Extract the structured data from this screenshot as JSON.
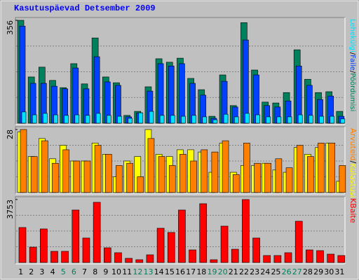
{
  "title": "Kasutuspäevad Detsember 2009",
  "legend_separator": "/",
  "categories": [
    "1",
    "2",
    "3",
    "4",
    "5",
    "6",
    "7",
    "8",
    "9",
    "10",
    "11",
    "12",
    "13",
    "14",
    "15",
    "16",
    "17",
    "18",
    "19",
    "20",
    "21",
    "22",
    "23",
    "24",
    "25",
    "26",
    "27",
    "28",
    "29",
    "30",
    "31"
  ],
  "category_colors": [
    "#000000",
    "#000000",
    "#000000",
    "#000000",
    "#00805C",
    "#00805C",
    "#000000",
    "#000000",
    "#000000",
    "#000000",
    "#000000",
    "#00805C",
    "#00805C",
    "#000000",
    "#000000",
    "#000000",
    "#000000",
    "#000000",
    "#00805C",
    "#00805C",
    "#000000",
    "#000000",
    "#000000",
    "#000000",
    "#000000",
    "#00805C",
    "#00805C",
    "#000000",
    "#000000",
    "#000000",
    "#000000"
  ],
  "chart_data": [
    {
      "type": "bar",
      "ylim": [
        0,
        356
      ],
      "yticks": [
        356
      ],
      "grid": true,
      "series": [
        {
          "name": "Pöördumisi",
          "color": "#00805C",
          "values": [
            356,
            160,
            194,
            148,
            123,
            206,
            136,
            295,
            160,
            140,
            27,
            41,
            126,
            223,
            211,
            225,
            155,
            116,
            24,
            167,
            61,
            348,
            184,
            73,
            70,
            106,
            254,
            152,
            106,
            109,
            41
          ]
        },
        {
          "name": "Faile",
          "color": "#0040FF",
          "values": [
            336,
            138,
            138,
            128,
            119,
            191,
            119,
            230,
            143,
            131,
            22,
            36,
            111,
            206,
            198,
            206,
            138,
            97,
            17,
            145,
            56,
            288,
            167,
            61,
            56,
            77,
            198,
            131,
            82,
            94,
            24
          ]
        },
        {
          "name": "Lehekülgi",
          "color": "#00E0FF",
          "values": [
            39,
            29,
            34,
            29,
            27,
            29,
            27,
            34,
            27,
            24,
            17,
            36,
            41,
            27,
            27,
            24,
            27,
            22,
            12,
            31,
            22,
            34,
            29,
            22,
            22,
            22,
            29,
            27,
            24,
            24,
            15
          ]
        }
      ]
    },
    {
      "type": "bar",
      "ylim": [
        0,
        28
      ],
      "yticks": [
        28
      ],
      "grid": true,
      "series": [
        {
          "name": "Külastusi",
          "color": "#FFFF00",
          "values": [
            27,
            16,
            24,
            15,
            21,
            14,
            14,
            22,
            17,
            7,
            14,
            16,
            28,
            17,
            16,
            19,
            19,
            18,
            9,
            22,
            9,
            12,
            12,
            13,
            10,
            9,
            20,
            17,
            20,
            22,
            5
          ]
        },
        {
          "name": "Arvuteid",
          "color": "#FF8000",
          "values": [
            28,
            16,
            23,
            13,
            19,
            14,
            14,
            21,
            17,
            12,
            13,
            7,
            24,
            16,
            12,
            17,
            14,
            19,
            18,
            23,
            8,
            22,
            13,
            13,
            15,
            11,
            21,
            16,
            22,
            22,
            12
          ]
        }
      ]
    },
    {
      "type": "bar",
      "ylim": [
        0,
        3753
      ],
      "yticks": [
        3753
      ],
      "grid": true,
      "series": [
        {
          "name": "KBaite",
          "color": "#FF0000",
          "values": [
            2085,
            917,
            2002,
            667,
            667,
            3128,
            1460,
            3587,
            876,
            584,
            250,
            167,
            459,
            2043,
            1793,
            3128,
            751,
            3503,
            167,
            2168,
            792,
            3753,
            1460,
            417,
            417,
            584,
            2460,
            751,
            709,
            500,
            417
          ]
        }
      ]
    }
  ]
}
